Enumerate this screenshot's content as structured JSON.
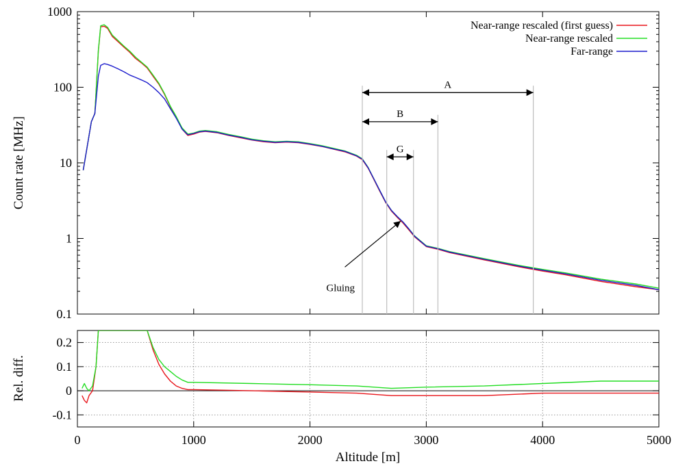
{
  "chart_data": [
    {
      "type": "line",
      "ylabel": "Count rate [MHz]",
      "xlim": [
        0,
        5000
      ],
      "ylim": [
        0.1,
        1000
      ],
      "y_scale": "log",
      "x_ticks": [
        0,
        1000,
        2000,
        3000,
        4000,
        5000
      ],
      "y_ticks": [
        {
          "v": 0.1,
          "label": "0.1"
        },
        {
          "v": 1,
          "label": "1"
        },
        {
          "v": 10,
          "label": "10"
        },
        {
          "v": 100,
          "label": "100"
        },
        {
          "v": 1000,
          "label": "1000"
        }
      ],
      "legend_position": "top-right",
      "series": [
        {
          "name": "Near-range rescaled (first guess)",
          "color": "#e8141a",
          "x": [
            50,
            80,
            120,
            150,
            180,
            200,
            230,
            260,
            300,
            350,
            400,
            450,
            500,
            550,
            600,
            650,
            700,
            750,
            800,
            850,
            900,
            950,
            1000,
            1050,
            1100,
            1200,
            1300,
            1400,
            1500,
            1600,
            1700,
            1800,
            1900,
            2000,
            2100,
            2200,
            2300,
            2400,
            2450,
            2500,
            2550,
            2600,
            2650,
            2700,
            2750,
            2800,
            2850,
            2900,
            3000,
            3100,
            3200,
            3500,
            3800,
            4000,
            4200,
            4500,
            4800,
            5000
          ],
          "y": [
            8,
            15,
            35,
            45,
            300,
            630,
            640,
            600,
            470,
            400,
            340,
            290,
            240,
            210,
            180,
            140,
            110,
            80,
            55,
            40,
            28,
            23,
            24,
            25.5,
            26,
            25,
            23,
            21.5,
            20,
            19,
            18.5,
            18.8,
            18.5,
            17.5,
            16.5,
            15.2,
            14,
            12.3,
            11,
            8.5,
            6,
            4.2,
            3,
            2.3,
            1.9,
            1.6,
            1.3,
            1.05,
            0.78,
            0.72,
            0.65,
            0.52,
            0.42,
            0.37,
            0.33,
            0.27,
            0.23,
            0.21
          ]
        },
        {
          "name": "Near-range rescaled",
          "color": "#22dd22",
          "x": [
            50,
            80,
            120,
            150,
            180,
            200,
            230,
            260,
            300,
            350,
            400,
            450,
            500,
            550,
            600,
            650,
            700,
            750,
            800,
            850,
            900,
            950,
            1000,
            1050,
            1100,
            1200,
            1300,
            1400,
            1500,
            1600,
            1700,
            1800,
            1900,
            2000,
            2100,
            2200,
            2300,
            2400,
            2450,
            2500,
            2550,
            2600,
            2650,
            2700,
            2750,
            2800,
            2850,
            2900,
            3000,
            3100,
            3200,
            3500,
            3800,
            4000,
            4200,
            4500,
            4800,
            5000
          ],
          "y": [
            8,
            15,
            35,
            45,
            310,
            650,
            670,
            620,
            490,
            415,
            350,
            300,
            250,
            215,
            185,
            145,
            113,
            82,
            56,
            41,
            29,
            24,
            24.8,
            26.3,
            26.8,
            25.8,
            23.8,
            22.2,
            20.6,
            19.6,
            19,
            19.3,
            19,
            18,
            16.9,
            15.6,
            14.4,
            12.6,
            11.3,
            8.7,
            6.1,
            4.3,
            3.05,
            2.35,
            1.95,
            1.65,
            1.34,
            1.08,
            0.8,
            0.74,
            0.67,
            0.54,
            0.44,
            0.39,
            0.35,
            0.29,
            0.25,
            0.22
          ]
        },
        {
          "name": "Far-range",
          "color": "#1a1acc",
          "x": [
            50,
            80,
            120,
            150,
            180,
            200,
            230,
            260,
            300,
            350,
            400,
            450,
            500,
            550,
            600,
            650,
            700,
            750,
            800,
            850,
            900,
            950,
            1000,
            1050,
            1100,
            1200,
            1300,
            1400,
            1500,
            1600,
            1700,
            1800,
            1900,
            2000,
            2100,
            2200,
            2300,
            2400,
            2450,
            2500,
            2550,
            2600,
            2650,
            2700,
            2750,
            2800,
            2850,
            2900,
            3000,
            3100,
            3200,
            3500,
            3800,
            4000,
            4200,
            4500,
            4800,
            5000
          ],
          "y": [
            8,
            15,
            35,
            45,
            140,
            195,
            205,
            200,
            190,
            175,
            160,
            145,
            135,
            125,
            115,
            100,
            85,
            70,
            52,
            39,
            28,
            23.5,
            24.5,
            25.8,
            26.3,
            25.3,
            23.3,
            21.8,
            20.2,
            19.3,
            18.7,
            19,
            18.7,
            17.7,
            16.6,
            15.3,
            14.2,
            12.4,
            11.2,
            8.6,
            6.1,
            4.3,
            3.05,
            2.35,
            1.95,
            1.65,
            1.34,
            1.07,
            0.79,
            0.73,
            0.66,
            0.53,
            0.43,
            0.38,
            0.34,
            0.28,
            0.24,
            0.21
          ]
        }
      ],
      "annotations": {
        "ranges": [
          {
            "label": "A",
            "from": 2450,
            "to": 3920,
            "arrow_y": 85
          },
          {
            "label": "B",
            "from": 2450,
            "to": 3100,
            "arrow_y": 35
          },
          {
            "label": "G",
            "from": 2660,
            "to": 2890,
            "arrow_y": 12
          }
        ],
        "gluing": {
          "text": "Gluing",
          "text_x": 2140,
          "text_y": 0.2,
          "arrow_to_x": 2780,
          "arrow_to_y": 1.7
        }
      }
    },
    {
      "type": "line",
      "xlabel": "Altitude [m]",
      "ylabel": "Rel. diff.",
      "xlim": [
        0,
        5000
      ],
      "ylim": [
        -0.15,
        0.25
      ],
      "x_ticks": [
        0,
        1000,
        2000,
        3000,
        4000,
        5000
      ],
      "y_ticks": [
        {
          "v": -0.1,
          "label": "-0.1"
        },
        {
          "v": 0,
          "label": "0"
        },
        {
          "v": 0.1,
          "label": "0.1"
        },
        {
          "v": 0.2,
          "label": "0.2"
        }
      ],
      "grid": true,
      "series": [
        {
          "name": "Near-range rescaled (first guess)",
          "color": "#e8141a",
          "x": [
            40,
            60,
            80,
            100,
            130,
            160,
            180,
            600,
            650,
            700,
            750,
            800,
            850,
            900,
            950,
            1000,
            1500,
            2000,
            2400,
            2700,
            3000,
            3500,
            4000,
            4500,
            5000
          ],
          "y": [
            -0.02,
            -0.04,
            -0.05,
            -0.02,
            0.0,
            0.1,
            0.25,
            0.25,
            0.17,
            0.11,
            0.07,
            0.04,
            0.02,
            0.01,
            0.005,
            0.005,
            0.0,
            -0.005,
            -0.01,
            -0.02,
            -0.02,
            -0.02,
            -0.01,
            -0.01,
            -0.01
          ]
        },
        {
          "name": "Near-range rescaled",
          "color": "#22dd22",
          "x": [
            40,
            60,
            80,
            100,
            130,
            160,
            180,
            600,
            650,
            700,
            750,
            800,
            850,
            900,
            950,
            1000,
            1500,
            2000,
            2400,
            2700,
            3000,
            3500,
            4000,
            4500,
            5000
          ],
          "y": [
            0.01,
            0.03,
            0.01,
            0.0,
            0.02,
            0.1,
            0.25,
            0.25,
            0.18,
            0.13,
            0.1,
            0.08,
            0.06,
            0.045,
            0.035,
            0.035,
            0.03,
            0.025,
            0.02,
            0.01,
            0.015,
            0.02,
            0.03,
            0.04,
            0.04
          ]
        }
      ]
    }
  ]
}
